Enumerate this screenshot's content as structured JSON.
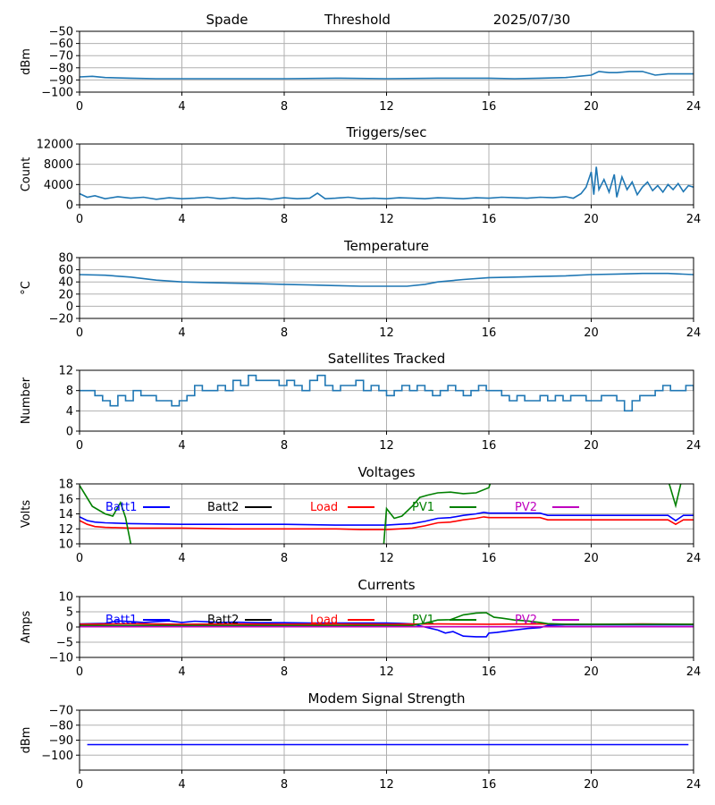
{
  "header": {
    "station": "Spade",
    "mode": "Threshold",
    "date": "2025/07/30"
  },
  "colors": {
    "default_series": "#1f77b4",
    "grid": "#b0b0b0",
    "Batt1": "#0000ff",
    "Batt2": "#000000",
    "Load": "#ff0000",
    "PV1": "#008000",
    "PV2": "#bf00bf"
  },
  "chart_data": [
    {
      "id": "signal",
      "type": "line",
      "title": "",
      "ylabel": "dBm",
      "xlim": [
        0,
        24
      ],
      "ylim": [
        -100,
        -50
      ],
      "x_ticks": [
        "0",
        "4",
        "8",
        "12",
        "16",
        "20",
        "24"
      ],
      "y_ticks": [
        "-100",
        "-90",
        "-80",
        "-70",
        "-60",
        "-50"
      ],
      "y_tick_values": [
        -100,
        -90,
        -80,
        -70,
        -60,
        -50
      ],
      "grid": true,
      "series": [
        {
          "color": "#1f77b4",
          "x": [
            0,
            0.5,
            1,
            2,
            3,
            4,
            6,
            8,
            10,
            12,
            14,
            16,
            17,
            18,
            19,
            19.5,
            20,
            20.3,
            20.7,
            21,
            21.5,
            22,
            22.5,
            23,
            23.5,
            24
          ],
          "y": [
            -87.5,
            -87,
            -88,
            -88.5,
            -89,
            -89,
            -89,
            -89,
            -88.5,
            -89,
            -88.5,
            -88.5,
            -89,
            -88.5,
            -88,
            -87,
            -86,
            -83,
            -84,
            -84,
            -83,
            -83,
            -86,
            -85,
            -85,
            -85
          ]
        }
      ]
    },
    {
      "id": "triggers",
      "type": "line",
      "title": "Triggers/sec",
      "ylabel": "Count",
      "xlim": [
        0,
        24
      ],
      "ylim": [
        0,
        12000
      ],
      "x_ticks": [
        "0",
        "4",
        "8",
        "12",
        "16",
        "20",
        "24"
      ],
      "y_ticks": [
        "0",
        "4000",
        "8000",
        "12000"
      ],
      "y_tick_values": [
        0,
        4000,
        8000,
        12000
      ],
      "grid": true,
      "series": [
        {
          "color": "#1f77b4",
          "x": [
            0,
            0.3,
            0.6,
            1,
            1.5,
            2,
            2.5,
            3,
            3.5,
            4,
            4.5,
            5,
            5.5,
            6,
            6.5,
            7,
            7.5,
            8,
            8.5,
            9,
            9.3,
            9.6,
            10,
            10.5,
            11,
            11.5,
            12,
            12.5,
            13,
            13.5,
            14,
            14.5,
            15,
            15.5,
            16,
            16.5,
            17,
            17.5,
            18,
            18.5,
            19,
            19.3,
            19.6,
            19.8,
            20,
            20.1,
            20.2,
            20.3,
            20.5,
            20.7,
            20.9,
            21,
            21.2,
            21.4,
            21.6,
            21.8,
            22,
            22.2,
            22.4,
            22.6,
            22.8,
            23,
            23.2,
            23.4,
            23.6,
            23.8,
            24
          ],
          "y": [
            2200,
            1500,
            1800,
            1200,
            1600,
            1300,
            1500,
            1100,
            1400,
            1200,
            1300,
            1500,
            1200,
            1400,
            1200,
            1300,
            1100,
            1400,
            1200,
            1300,
            2300,
            1200,
            1300,
            1500,
            1200,
            1300,
            1200,
            1400,
            1300,
            1200,
            1400,
            1300,
            1200,
            1400,
            1300,
            1500,
            1400,
            1300,
            1500,
            1400,
            1600,
            1300,
            2200,
            3500,
            6500,
            2000,
            7500,
            3000,
            5000,
            2500,
            6000,
            1500,
            5500,
            3000,
            4500,
            2000,
            3500,
            4500,
            2800,
            3800,
            2500,
            4000,
            3000,
            4200,
            2600,
            3800,
            3500
          ]
        }
      ]
    },
    {
      "id": "temperature",
      "type": "line",
      "title": "Temperature",
      "ylabel": "°C",
      "xlim": [
        0,
        24
      ],
      "ylim": [
        -20,
        80
      ],
      "x_ticks": [
        "0",
        "4",
        "8",
        "12",
        "16",
        "20",
        "24"
      ],
      "y_ticks": [
        "-20",
        "0",
        "20",
        "40",
        "60",
        "80"
      ],
      "y_tick_values": [
        -20,
        0,
        20,
        40,
        60,
        80
      ],
      "grid": true,
      "series": [
        {
          "color": "#1f77b4",
          "x": [
            0,
            1,
            2,
            3,
            4,
            5,
            6,
            7,
            8,
            9,
            10,
            11,
            12,
            12.8,
            13.5,
            14,
            15,
            16,
            17,
            18,
            19,
            20,
            21,
            22,
            23,
            24
          ],
          "y": [
            52,
            51,
            48,
            43,
            40,
            39,
            38,
            37,
            36,
            35,
            34,
            33,
            33,
            33,
            36,
            40,
            44,
            47,
            48,
            49,
            50,
            52,
            53,
            54,
            54,
            52
          ]
        }
      ]
    },
    {
      "id": "satellites",
      "type": "line",
      "title": "Satellites Tracked",
      "ylabel": "Number",
      "xlim": [
        0,
        24
      ],
      "ylim": [
        0,
        12
      ],
      "x_ticks": [
        "0",
        "4",
        "8",
        "12",
        "16",
        "20",
        "24"
      ],
      "y_ticks": [
        "0",
        "4",
        "8",
        "12"
      ],
      "y_tick_values": [
        0,
        4,
        8,
        12
      ],
      "grid": true,
      "series": [
        {
          "color": "#1f77b4",
          "step": true,
          "x": [
            0,
            0.3,
            0.6,
            0.9,
            1.2,
            1.5,
            1.8,
            2.1,
            2.4,
            2.7,
            3,
            3.3,
            3.6,
            3.9,
            4.2,
            4.5,
            4.8,
            5.1,
            5.4,
            5.7,
            6,
            6.3,
            6.6,
            6.9,
            7.2,
            7.5,
            7.8,
            8.1,
            8.4,
            8.7,
            9,
            9.3,
            9.6,
            9.9,
            10.2,
            10.5,
            10.8,
            11.1,
            11.4,
            11.7,
            12,
            12.3,
            12.6,
            12.9,
            13.2,
            13.5,
            13.8,
            14.1,
            14.4,
            14.7,
            15,
            15.3,
            15.6,
            15.9,
            16.2,
            16.5,
            16.8,
            17.1,
            17.4,
            17.7,
            18,
            18.3,
            18.6,
            18.9,
            19.2,
            19.5,
            19.8,
            20.1,
            20.4,
            20.7,
            21,
            21.3,
            21.6,
            21.9,
            22.2,
            22.5,
            22.8,
            23.1,
            23.4,
            23.7,
            24
          ],
          "y": [
            8,
            8,
            7,
            6,
            5,
            7,
            6,
            8,
            7,
            7,
            6,
            6,
            5,
            6,
            7,
            9,
            8,
            8,
            9,
            8,
            10,
            9,
            11,
            10,
            10,
            10,
            9,
            10,
            9,
            8,
            10,
            11,
            9,
            8,
            9,
            9,
            10,
            8,
            9,
            8,
            7,
            8,
            9,
            8,
            9,
            8,
            7,
            8,
            9,
            8,
            7,
            8,
            9,
            8,
            8,
            7,
            6,
            7,
            6,
            6,
            7,
            6,
            7,
            6,
            7,
            7,
            6,
            6,
            7,
            7,
            6,
            4,
            6,
            7,
            7,
            8,
            9,
            8,
            8,
            9,
            8
          ]
        }
      ]
    },
    {
      "id": "voltages",
      "type": "line",
      "title": "Voltages",
      "ylabel": "Volts",
      "xlim": [
        0,
        24
      ],
      "ylim": [
        10,
        18
      ],
      "x_ticks": [
        "0",
        "4",
        "8",
        "12",
        "16",
        "20",
        "24"
      ],
      "y_ticks": [
        "10",
        "12",
        "14",
        "16",
        "18"
      ],
      "y_tick_values": [
        10,
        12,
        14,
        16,
        18
      ],
      "grid": true,
      "legend": [
        "Batt1",
        "Batt2",
        "Load",
        "PV1",
        "PV2"
      ],
      "series": [
        {
          "name": "Batt1",
          "color": "#0000ff",
          "x": [
            0,
            0.3,
            0.6,
            1,
            2,
            4,
            6,
            8,
            10,
            12,
            12.5,
            13,
            13.5,
            14,
            14.5,
            15,
            15.5,
            15.8,
            16,
            17,
            18,
            18.3,
            19,
            20,
            21,
            22,
            23,
            23.3,
            23.6,
            24
          ],
          "y": [
            13.6,
            13.1,
            12.9,
            12.8,
            12.7,
            12.6,
            12.6,
            12.6,
            12.5,
            12.5,
            12.6,
            12.7,
            13.0,
            13.4,
            13.5,
            13.8,
            14.0,
            14.2,
            14.1,
            14.1,
            14.1,
            13.8,
            13.8,
            13.8,
            13.8,
            13.8,
            13.8,
            13.1,
            13.8,
            13.8
          ]
        },
        {
          "name": "Load",
          "color": "#ff0000",
          "x": [
            0,
            0.3,
            0.6,
            1,
            2,
            4,
            6,
            8,
            10,
            11,
            12,
            12.5,
            13,
            13.5,
            14,
            14.5,
            15,
            15.5,
            15.8,
            16,
            17,
            18,
            18.3,
            19,
            20,
            21,
            22,
            23,
            23.3,
            23.6,
            24
          ],
          "y": [
            13.1,
            12.6,
            12.3,
            12.2,
            12.1,
            12.1,
            12.0,
            12.0,
            12.0,
            11.9,
            11.9,
            12.0,
            12.1,
            12.4,
            12.8,
            12.9,
            13.2,
            13.4,
            13.6,
            13.5,
            13.5,
            13.5,
            13.2,
            13.2,
            13.2,
            13.2,
            13.2,
            13.2,
            12.6,
            13.2,
            13.2
          ]
        },
        {
          "name": "PV1",
          "color": "#008000",
          "x": [
            0,
            0.5,
            1,
            1.3,
            1.6,
            1.8,
            2.0,
            2.2,
            11.8,
            12,
            12.3,
            12.6,
            13,
            13.3,
            13.6,
            14,
            14.5,
            15,
            15.5,
            16,
            16.15
          ],
          "y": [
            17.8,
            15.0,
            14.0,
            13.7,
            15.5,
            13.5,
            10.0,
            6.0,
            6.0,
            14.7,
            13.4,
            13.7,
            15.0,
            16.2,
            16.5,
            16.8,
            16.9,
            16.7,
            16.8,
            17.5,
            19.0
          ]
        },
        {
          "name": "PV1",
          "color": "#008000",
          "x": [
            22.9,
            23.05,
            23.3,
            23.5,
            23.7
          ],
          "y": [
            19.5,
            18.0,
            15.1,
            18.0,
            19.5
          ]
        }
      ]
    },
    {
      "id": "currents",
      "type": "line",
      "title": "Currents",
      "ylabel": "Amps",
      "xlim": [
        0,
        24
      ],
      "ylim": [
        -10,
        10
      ],
      "x_ticks": [
        "0",
        "4",
        "8",
        "12",
        "16",
        "20",
        "24"
      ],
      "y_ticks": [
        "-10",
        "-5",
        "0",
        "5",
        "10"
      ],
      "y_tick_values": [
        -10,
        -5,
        0,
        5,
        10
      ],
      "grid": true,
      "legend": [
        "Batt1",
        "Batt2",
        "Load",
        "PV1",
        "PV2"
      ],
      "series": [
        {
          "name": "Batt1",
          "color": "#0000ff",
          "x": [
            0,
            1,
            1.5,
            2,
            2.5,
            3,
            3.5,
            4,
            4.5,
            5,
            5.5,
            6,
            7,
            8,
            9,
            10,
            11,
            12,
            12.5,
            13,
            13.5,
            14,
            14.3,
            14.6,
            15,
            15.5,
            15.9,
            16,
            16.3,
            17,
            17.5,
            18,
            18.3,
            19,
            20,
            21,
            22,
            23,
            24
          ],
          "y": [
            1,
            1.2,
            2,
            1.8,
            1.5,
            1.8,
            2,
            1.5,
            1.9,
            1.7,
            1.5,
            1.6,
            1.4,
            1.4,
            1.3,
            1.3,
            1.3,
            1.3,
            1.2,
            1,
            0,
            -1,
            -2,
            -1.5,
            -3,
            -3.2,
            -3.2,
            -2,
            -1.8,
            -1,
            -0.5,
            -0.2,
            0.5,
            0.7,
            0.7,
            0.7,
            0.7,
            0.7,
            0.7
          ]
        },
        {
          "name": "Load",
          "color": "#ff0000",
          "x": [
            0,
            2,
            4,
            6,
            8,
            10,
            12,
            14,
            16,
            18,
            20,
            22,
            24
          ],
          "y": [
            0.9,
            1.1,
            0.9,
            1.0,
            0.9,
            1.0,
            0.9,
            1.0,
            0.9,
            1.0,
            0.9,
            1.0,
            0.9
          ]
        },
        {
          "name": "PV1",
          "color": "#008000",
          "x": [
            0,
            2,
            4,
            6,
            8,
            10,
            12,
            13,
            13.5,
            14,
            14.5,
            15,
            15.5,
            15.9,
            16.2,
            16.5,
            17,
            17.5,
            18,
            18.3,
            19,
            20,
            21,
            22,
            23,
            24
          ],
          "y": [
            0.5,
            0.5,
            0.5,
            0.5,
            0.5,
            0.5,
            0.5,
            0.5,
            1.3,
            2.3,
            2.4,
            4,
            4.6,
            4.7,
            3.2,
            2.9,
            2.3,
            2,
            1.5,
            1.1,
            0.9,
            0.9,
            0.9,
            0.9,
            0.9,
            0.9
          ]
        },
        {
          "name": "PV2",
          "color": "#bf00bf",
          "x": [
            0,
            24
          ],
          "y": [
            0.1,
            0.1
          ]
        }
      ]
    },
    {
      "id": "modem",
      "type": "line",
      "title": "Modem Signal Strength",
      "ylabel": "dBm",
      "xlim": [
        0,
        24
      ],
      "ylim": [
        -110,
        -70
      ],
      "x_ticks": [
        "0",
        "4",
        "8",
        "12",
        "16",
        "20",
        "24"
      ],
      "y_ticks": [
        "-100",
        "-90",
        "-80",
        "-70"
      ],
      "y_tick_values": [
        -100,
        -90,
        -80,
        -70
      ],
      "grid": true,
      "series": [
        {
          "color": "#0000ff",
          "x": [
            0.3,
            23.8
          ],
          "y": [
            -93,
            -93
          ]
        }
      ]
    }
  ]
}
